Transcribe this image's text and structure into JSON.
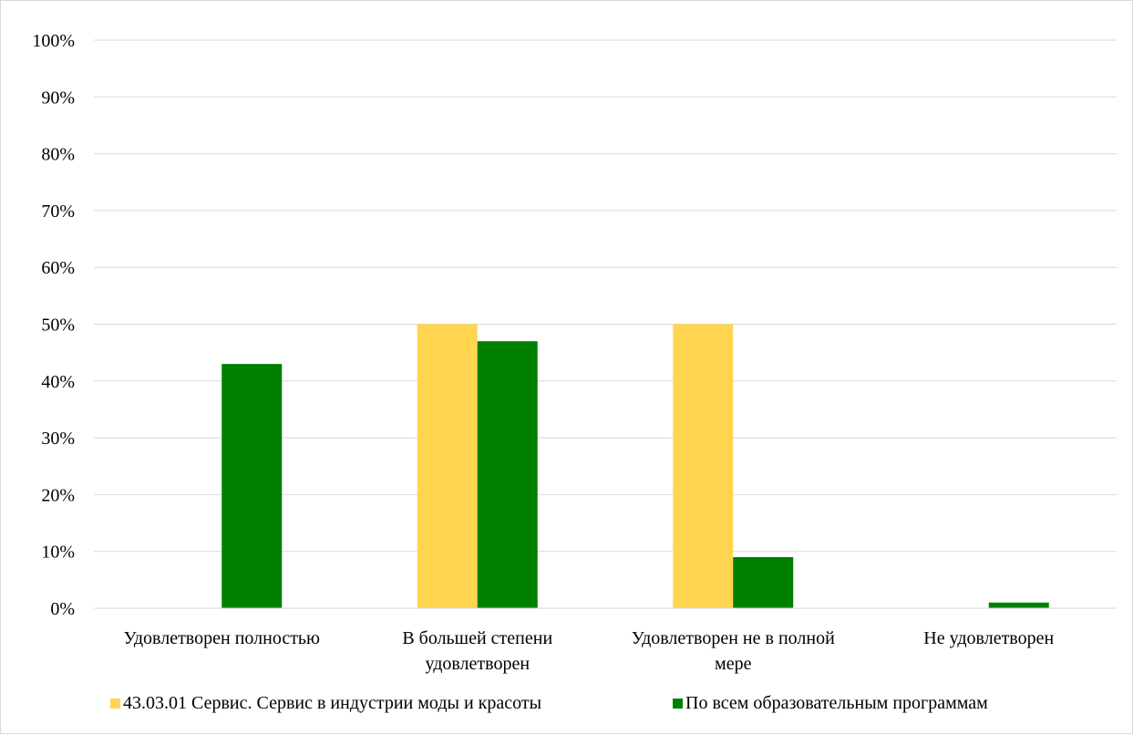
{
  "chart_data": {
    "type": "bar",
    "title": "",
    "xlabel": "",
    "ylabel": "",
    "ylim": [
      0,
      100
    ],
    "y_ticks": [
      0,
      10,
      20,
      30,
      40,
      50,
      60,
      70,
      80,
      90,
      100
    ],
    "y_tick_labels": [
      "0%",
      "10%",
      "20%",
      "30%",
      "40%",
      "50%",
      "60%",
      "70%",
      "80%",
      "90%",
      "100%"
    ],
    "grid": true,
    "legend_position": "bottom",
    "categories": [
      [
        "Удовлетворен полностью"
      ],
      [
        "В большей степени",
        "удовлетворен"
      ],
      [
        "Удовлетворен не в полной",
        "мере"
      ],
      [
        "Не удовлетворен"
      ]
    ],
    "series": [
      {
        "name": "43.03.01 Сервис. Сервис в индустрии моды и красоты",
        "color": "#FFD54F",
        "values": [
          0,
          50,
          50,
          0
        ]
      },
      {
        "name": "По всем образовательным программам",
        "color": "#008000",
        "values": [
          43,
          47,
          9,
          1
        ]
      }
    ]
  }
}
